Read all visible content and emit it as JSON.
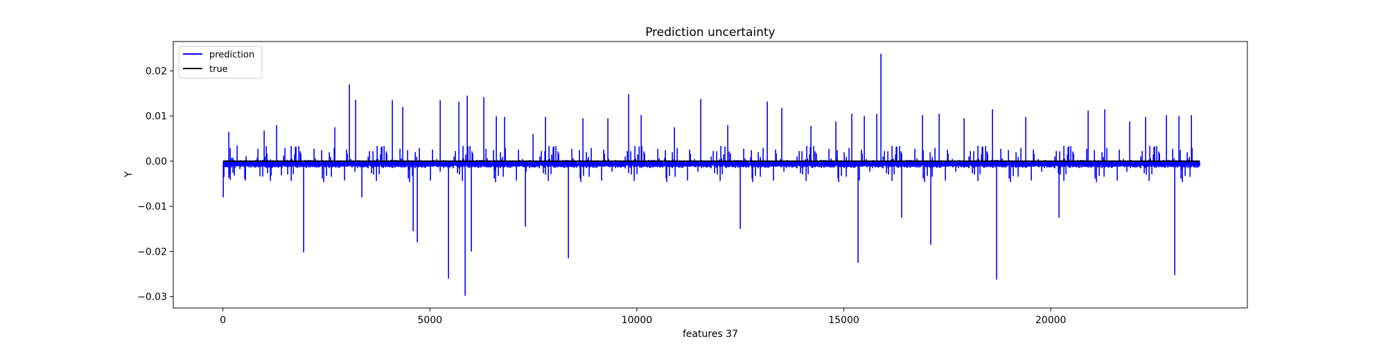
{
  "chart_data": {
    "type": "line",
    "title": "Prediction uncertainty",
    "xlabel": "features 37",
    "ylabel": "Y",
    "xlim": [
      -1200,
      24750
    ],
    "ylim": [
      -0.0325,
      0.0265
    ],
    "x_ticks": [
      0,
      5000,
      10000,
      15000,
      20000
    ],
    "x_tick_labels": [
      "0",
      "5000",
      "10000",
      "15000",
      "20000"
    ],
    "y_ticks": [
      -0.03,
      -0.02,
      -0.01,
      0.0,
      0.01,
      0.02
    ],
    "y_tick_labels": [
      "−0.03",
      "−0.02",
      "−0.01",
      "0.00",
      "0.01",
      "0.02"
    ],
    "grid": false,
    "legend_position": "top-left",
    "n_points": 23600,
    "series": [
      {
        "name": "prediction",
        "color": "#0000ff",
        "noise_band": [
          -0.004,
          0.0025
        ],
        "spikes_x": [
          0,
          150,
          1000,
          1300,
          1950,
          2700,
          3050,
          3200,
          3350,
          4100,
          4350,
          4600,
          4700,
          5250,
          5450,
          5700,
          5850,
          5900,
          6000,
          6300,
          6600,
          6800,
          7300,
          7500,
          7800,
          8350,
          8700,
          9300,
          9800,
          10100,
          10900,
          11550,
          12200,
          12500,
          13150,
          13500,
          14200,
          14800,
          15200,
          15350,
          15500,
          15800,
          15900,
          16400,
          16900,
          17100,
          17300,
          17900,
          18600,
          18700,
          19400,
          20200,
          20900,
          21300,
          21900,
          22300,
          22800,
          23000,
          23100,
          23400
        ],
        "spikes_y": [
          -0.008,
          0.0065,
          0.0068,
          0.008,
          -0.0202,
          0.0075,
          0.017,
          0.0136,
          -0.008,
          0.0135,
          0.012,
          -0.0155,
          -0.018,
          0.0135,
          -0.026,
          0.0132,
          -0.0298,
          0.0145,
          -0.02,
          0.0142,
          0.01,
          0.0098,
          -0.0145,
          0.006,
          0.0098,
          -0.0215,
          0.0095,
          0.0095,
          0.0148,
          0.0102,
          0.0075,
          0.0138,
          0.008,
          -0.015,
          0.0132,
          0.0118,
          0.0078,
          0.0088,
          0.0105,
          -0.0225,
          0.01,
          0.0105,
          0.0238,
          -0.0125,
          0.0102,
          -0.0185,
          0.0105,
          0.0095,
          0.0115,
          -0.0262,
          0.0098,
          -0.0125,
          0.0112,
          0.0115,
          0.0088,
          0.0098,
          0.0102,
          -0.0252,
          0.01,
          0.0102
        ]
      },
      {
        "name": "true",
        "color": "#000000",
        "values_constant": 0.0
      }
    ]
  }
}
